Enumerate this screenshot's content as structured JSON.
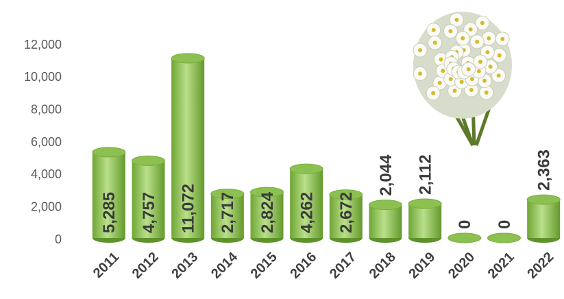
{
  "chart_data": {
    "type": "bar",
    "categories": [
      "2011",
      "2012",
      "2013",
      "2014",
      "2015",
      "2016",
      "2017",
      "2018",
      "2019",
      "2020",
      "2021",
      "2022"
    ],
    "values": [
      5285,
      4757,
      11072,
      2717,
      2824,
      4262,
      2672,
      2044,
      2112,
      0,
      0,
      2363
    ],
    "value_labels": [
      "5,285",
      "4,757",
      "11,072",
      "2,717",
      "2,824",
      "4,262",
      "2,672",
      "2,044",
      "2,112",
      "0",
      "0",
      "2,363"
    ],
    "color": "#8cc152",
    "ylim": [
      0,
      12000
    ],
    "yticks": [
      0,
      {
        "value": 2000,
        "label": "2,000"
      },
      {
        "value": 4000,
        "label": "4,000"
      },
      {
        "value": 6000,
        "label": "6,000"
      },
      {
        "value": 8000,
        "label": "8,000"
      },
      {
        "value": 10000,
        "label": "10,000"
      },
      {
        "value": 12000,
        "label": "12,000"
      }
    ],
    "grid": false
  }
}
